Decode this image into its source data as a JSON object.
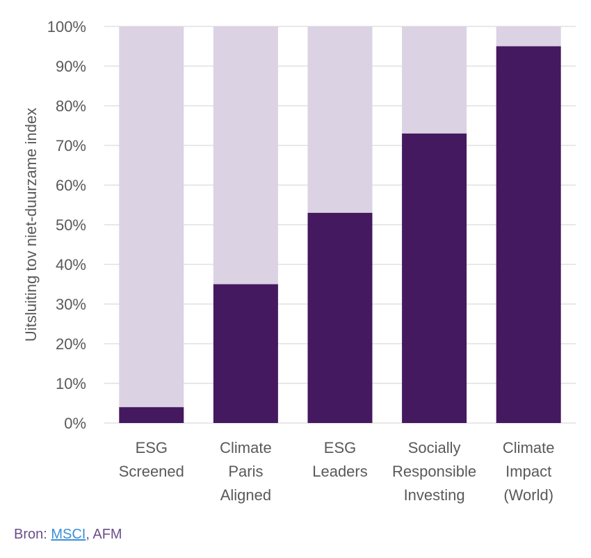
{
  "chart_data": {
    "type": "bar",
    "stacked": true,
    "categories": [
      [
        "ESG",
        "Screened"
      ],
      [
        "Climate",
        "Paris",
        "Aligned"
      ],
      [
        "ESG",
        "Leaders"
      ],
      [
        "Socially",
        "Responsible",
        "Investing"
      ],
      [
        "Climate",
        "Impact",
        "(World)"
      ]
    ],
    "values": [
      4,
      35,
      53,
      73,
      95
    ],
    "ylabel": "Uitsluiting tov niet-duurzame index",
    "ylim": [
      0,
      100
    ],
    "yticks": [
      "0%",
      "10%",
      "20%",
      "30%",
      "40%",
      "50%",
      "60%",
      "70%",
      "80%",
      "90%",
      "100%"
    ],
    "grid": true,
    "legend": "none",
    "colors": {
      "value": "#44195f",
      "remainder": "#dbd2e4",
      "grid": "#d9d9d9",
      "text": "#595959"
    }
  },
  "source": {
    "prefix": "Bron: ",
    "link": "MSCI",
    "suffix": ", AFM"
  }
}
